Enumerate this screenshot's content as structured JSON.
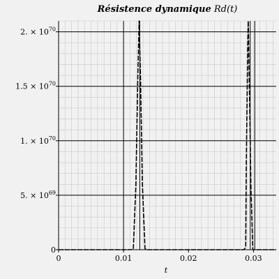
{
  "chart_data": {
    "type": "line",
    "title_bold": "Résistence dynamique",
    "title_func": "Rd(t)",
    "xlabel": "t",
    "ylabel": "",
    "xlim": [
      0,
      0.0335
    ],
    "ylim": [
      0,
      2.1e+70
    ],
    "x_ticks": [
      {
        "v": 0,
        "label": "0"
      },
      {
        "v": 0.01,
        "label": "0.01"
      },
      {
        "v": 0.02,
        "label": "0.02"
      },
      {
        "v": 0.03,
        "label": "0.03"
      }
    ],
    "y_ticks": [
      {
        "v": 0,
        "mant": "0",
        "exp": ""
      },
      {
        "v": 5e+69,
        "mant": "5. × 10",
        "exp": "69"
      },
      {
        "v": 1e+70,
        "mant": "1. × 10",
        "exp": "70"
      },
      {
        "v": 1.5e+70,
        "mant": "1.5 × 10",
        "exp": "70"
      },
      {
        "v": 2e+70,
        "mant": "2. × 10",
        "exp": "70"
      }
    ],
    "x_gridlines": [
      0.01,
      0.0125,
      0.0295,
      0.0302
    ],
    "y_gridlines": [
      0,
      5e+69,
      1e+70,
      1.5e+70,
      2e+70
    ],
    "x_minor_step": 0.001,
    "y_minor_step": 1e+69,
    "series": [
      {
        "x": [
          0,
          0.0108,
          0.0115,
          0.0119,
          0.0122,
          0.0124,
          0.0126,
          0.0129,
          0.0133,
          0.0136,
          0.0285,
          0.0288,
          0.0289,
          0.0291,
          0.0292,
          0.0294,
          0.0296,
          0.0299,
          0.0335
        ],
        "y": [
          0,
          0,
          2e+67,
          6e+69,
          1.6e+70,
          2.1e+70,
          1.6e+70,
          6e+69,
          1e+68,
          0,
          0,
          2e+68,
          8e+69,
          1.8e+70,
          2.1e+70,
          1.4e+70,
          6e+69,
          0,
          0
        ]
      }
    ]
  }
}
